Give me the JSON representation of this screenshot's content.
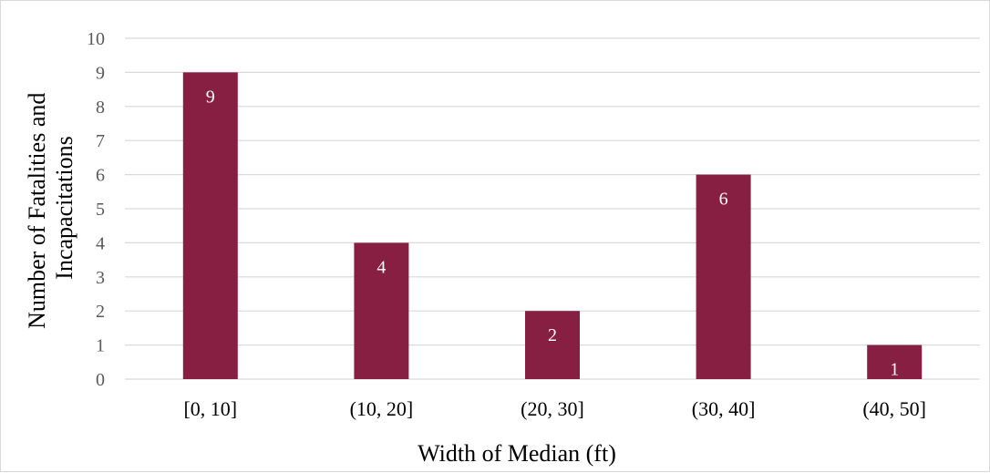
{
  "chart_data": {
    "type": "bar",
    "categories": [
      "[0, 10]",
      "(10, 20]",
      "(20, 30]",
      "(30, 40]",
      "(40, 50]"
    ],
    "values": [
      9,
      4,
      2,
      6,
      1
    ],
    "data_labels": [
      "9",
      "4",
      "2",
      "6",
      "1"
    ],
    "title": "",
    "xlabel": "Width of Median (ft)",
    "ylabel_lines": [
      "Number of Fatalities and",
      "Incapacitations"
    ],
    "ylim": [
      0,
      10
    ],
    "yticks": [
      "0",
      "1",
      "2",
      "3",
      "4",
      "5",
      "6",
      "7",
      "8",
      "9",
      "10"
    ],
    "grid": true,
    "legend": "none",
    "bar_color": "#861F41",
    "grid_color": "#d9d9d9"
  }
}
